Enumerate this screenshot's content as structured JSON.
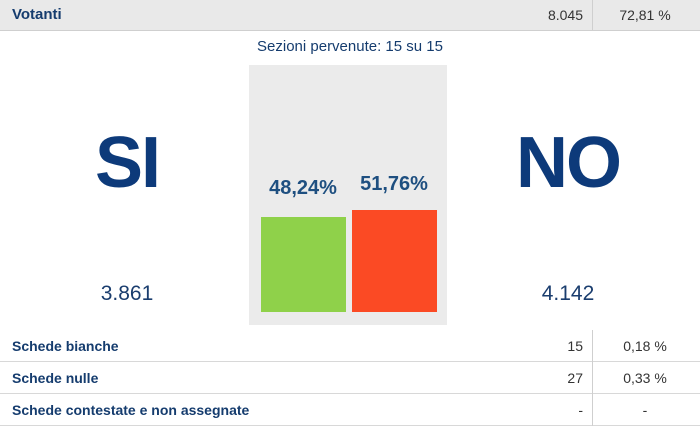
{
  "header": {
    "label": "Votanti",
    "count": "8.045",
    "percent": "72,81 %"
  },
  "sections": "Sezioni pervenute: 15 su 15",
  "yes": {
    "label": "SI",
    "votes": "3.861"
  },
  "no": {
    "label": "NO",
    "votes": "4.142"
  },
  "bars": [
    {
      "value": 48.24,
      "label": "48,24%",
      "color": "#8fd14a"
    },
    {
      "value": 51.76,
      "label": "51,76%",
      "color": "#fb4a24"
    }
  ],
  "table": {
    "rows": [
      [
        "Schede bianche",
        "15",
        "0,18 %"
      ],
      [
        "Schede nulle",
        "27",
        "0,33 %"
      ],
      [
        "Schede contestate e non assegnate",
        "-",
        "-"
      ]
    ]
  }
}
